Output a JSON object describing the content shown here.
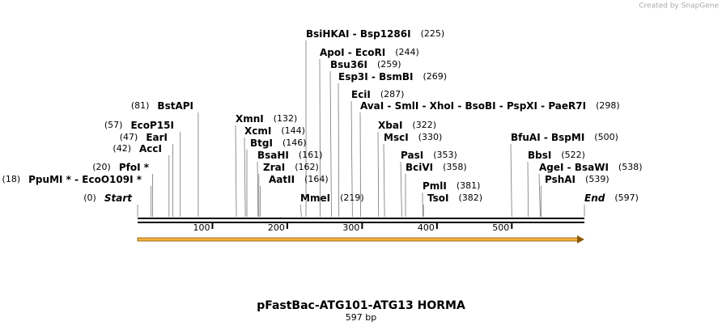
{
  "watermark": "Created by SnapGene",
  "title": "pFastBac-ATG101-ATG13 HORMA",
  "subtitle": "597 bp",
  "ruler": {
    "length": 597,
    "ticks": [
      100,
      200,
      300,
      400,
      500
    ]
  },
  "sites": [
    {
      "name": "BsiHKAI  -  Bsp1286I",
      "position": 225,
      "position_label": "(225)"
    },
    {
      "name": "ApoI  -  EcoRI",
      "position": 244,
      "position_label": "(244)"
    },
    {
      "name": "Bsu36I",
      "position": 259,
      "position_label": "(259)"
    },
    {
      "name": "Esp3I  -  BsmBI",
      "position": 269,
      "position_label": "(269)"
    },
    {
      "name": "EciI",
      "position": 287,
      "position_label": "(287)"
    },
    {
      "name": "AvaI  -  SmlI  -  XhoI  -  BsoBI  -  PspXI  -  PaeR7I",
      "position": 298,
      "position_label": "(298)"
    },
    {
      "name": "XbaI",
      "position": 322,
      "position_label": "(322)"
    },
    {
      "name": "MscI",
      "position": 330,
      "position_label": "(330)"
    },
    {
      "name": "PasI",
      "position": 353,
      "position_label": "(353)"
    },
    {
      "name": "BciVI",
      "position": 358,
      "position_label": "(358)"
    },
    {
      "name": "PmlI",
      "position": 381,
      "position_label": "(381)"
    },
    {
      "name": "TsoI",
      "position": 382,
      "position_label": "(382)"
    },
    {
      "name": "BfuAI  -  BspMI",
      "position": 500,
      "position_label": "(500)"
    },
    {
      "name": "BbsI",
      "position": 522,
      "position_label": "(522)"
    },
    {
      "name": "AgeI  -  BsaWI",
      "position": 538,
      "position_label": "(538)"
    },
    {
      "name": "PshAI",
      "position": 539,
      "position_label": "(539)"
    },
    {
      "name": "End",
      "position": 597,
      "position_label": "(597)"
    },
    {
      "name": "BstAPI",
      "position": 81,
      "position_label": "(81)"
    },
    {
      "name": "EcoP15I",
      "position": 57,
      "position_label": "(57)"
    },
    {
      "name": "EarI",
      "position": 47,
      "position_label": "(47)"
    },
    {
      "name": "AccI",
      "position": 42,
      "position_label": "(42)"
    },
    {
      "name": "PfoI *",
      "position": 20,
      "position_label": "(20)"
    },
    {
      "name": "PpuMI *  -  EcoO109I *",
      "position": 18,
      "position_label": "(18)"
    },
    {
      "name": "Start",
      "position": 0,
      "position_label": "(0)"
    },
    {
      "name": "XmnI",
      "position": 132,
      "position_label": "(132)"
    },
    {
      "name": "XcmI",
      "position": 144,
      "position_label": "(144)"
    },
    {
      "name": "BtgI",
      "position": 146,
      "position_label": "(146)"
    },
    {
      "name": "BsaHI",
      "position": 161,
      "position_label": "(161)"
    },
    {
      "name": "ZraI",
      "position": 162,
      "position_label": "(162)"
    },
    {
      "name": "AatII",
      "position": 164,
      "position_label": "(164)"
    },
    {
      "name": "MmeI",
      "position": 219,
      "position_label": "(219)"
    }
  ]
}
